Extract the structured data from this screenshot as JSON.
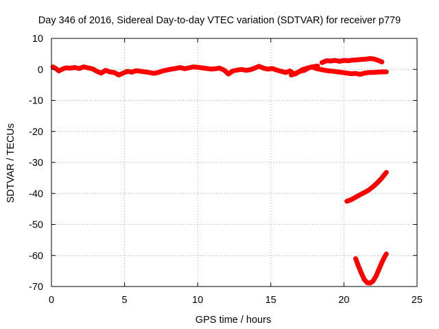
{
  "chart_data": {
    "type": "scatter",
    "title": "Day 346 of 2016, Sidereal Day-to-day VTEC variation (SDTVAR) for receiver p779",
    "xlabel": "GPS time / hours",
    "ylabel": "SDTVAR / TECUs",
    "xlim": [
      0,
      25
    ],
    "ylim": [
      -70,
      10
    ],
    "xticks": [
      0,
      5,
      10,
      15,
      20,
      25
    ],
    "yticks": [
      10,
      0,
      -10,
      -20,
      -30,
      -40,
      -50,
      -60,
      -70
    ],
    "xtick_labels": [
      "0",
      "5",
      "10",
      "15",
      "20",
      "25"
    ],
    "ytick_labels": [
      "10",
      "0",
      "-10",
      "-20",
      "-30",
      "-40",
      "-50",
      "-60",
      "-70"
    ],
    "grid": true,
    "series_color": "#ff0000",
    "series": [
      {
        "name": "main band",
        "x": [
          0.1,
          0.3,
          0.5,
          0.8,
          1.0,
          1.3,
          1.6,
          1.9,
          2.2,
          2.5,
          2.8,
          3.1,
          3.4,
          3.7,
          4.0,
          4.3,
          4.6,
          4.9,
          5.2,
          5.5,
          5.8,
          6.1,
          6.4,
          6.7,
          7.0,
          7.3,
          7.6,
          7.9,
          8.2,
          8.5,
          8.8,
          9.1,
          9.4,
          9.7,
          10.0,
          10.3,
          10.6,
          10.9,
          11.2,
          11.5,
          11.8,
          12.1,
          12.4,
          12.7,
          13.0,
          13.3,
          13.6,
          13.9,
          14.2,
          14.5,
          14.8,
          15.1,
          15.4,
          15.7,
          16.0,
          16.3,
          16.6,
          16.9,
          17.2,
          17.5,
          17.8,
          18.1,
          18.4,
          18.7,
          19.0,
          19.3,
          19.6,
          19.9,
          20.2,
          20.5,
          20.8,
          21.1,
          21.4,
          21.7,
          22.0,
          22.3,
          22.6,
          22.9
        ],
        "y": [
          0.8,
          0.3,
          -0.5,
          0.2,
          0.5,
          0.4,
          0.6,
          0.3,
          0.8,
          0.5,
          0.2,
          -0.6,
          -1.2,
          -0.3,
          -0.8,
          -1.0,
          -1.8,
          -1.2,
          -0.6,
          -0.9,
          -0.4,
          -0.6,
          -0.8,
          -1.0,
          -1.3,
          -1.0,
          -0.5,
          -0.2,
          0.1,
          0.3,
          0.6,
          0.2,
          0.5,
          0.8,
          0.7,
          0.5,
          0.3,
          0.1,
          0.2,
          0.4,
          -0.2,
          -1.5,
          -0.5,
          -0.2,
          0.0,
          -0.3,
          -0.1,
          0.4,
          1.0,
          0.4,
          0.1,
          0.3,
          -0.2,
          -0.6,
          -1.0,
          -0.5,
          -1.5,
          -0.8,
          0.0,
          0.4,
          0.8,
          0.3,
          0.0,
          -0.3,
          -0.5,
          -0.6,
          -0.8,
          -1.0,
          -1.2,
          -1.4,
          -1.3,
          -1.6,
          -1.2,
          -1.0,
          -1.0,
          -0.9,
          -0.8,
          -0.8
        ]
      },
      {
        "name": "upper arc",
        "x": [
          18.5,
          18.8,
          19.1,
          19.4,
          19.7,
          20.0,
          20.3,
          20.6,
          20.9,
          21.2,
          21.5,
          21.8,
          22.1,
          22.4,
          22.6
        ],
        "y": [
          2.2,
          2.8,
          2.7,
          2.9,
          2.6,
          2.9,
          2.8,
          3.0,
          3.1,
          3.2,
          3.3,
          3.5,
          3.3,
          2.8,
          2.4
        ]
      },
      {
        "name": "descending branch",
        "x": [
          16.4,
          16.7,
          17.0,
          17.3,
          17.6,
          17.9,
          18.2
        ],
        "y": [
          -1.8,
          -1.4,
          -0.6,
          -0.3,
          0.5,
          0.9,
          1.1
        ]
      },
      {
        "name": "rising line",
        "x": [
          20.2,
          20.5,
          20.8,
          21.1,
          21.4,
          21.7,
          22.0,
          22.3,
          22.6,
          22.9
        ],
        "y": [
          -42.5,
          -42.0,
          -41.2,
          -40.4,
          -39.7,
          -38.9,
          -37.8,
          -36.5,
          -35.0,
          -33.2
        ]
      },
      {
        "name": "v-shaped dip",
        "x": [
          20.8,
          21.0,
          21.2,
          21.4,
          21.6,
          21.8,
          22.0,
          22.2,
          22.4,
          22.6,
          22.8,
          22.9
        ],
        "y": [
          -61.0,
          -63.5,
          -65.8,
          -67.8,
          -68.8,
          -68.9,
          -68.2,
          -66.6,
          -64.4,
          -62.2,
          -60.3,
          -59.5
        ]
      }
    ]
  }
}
